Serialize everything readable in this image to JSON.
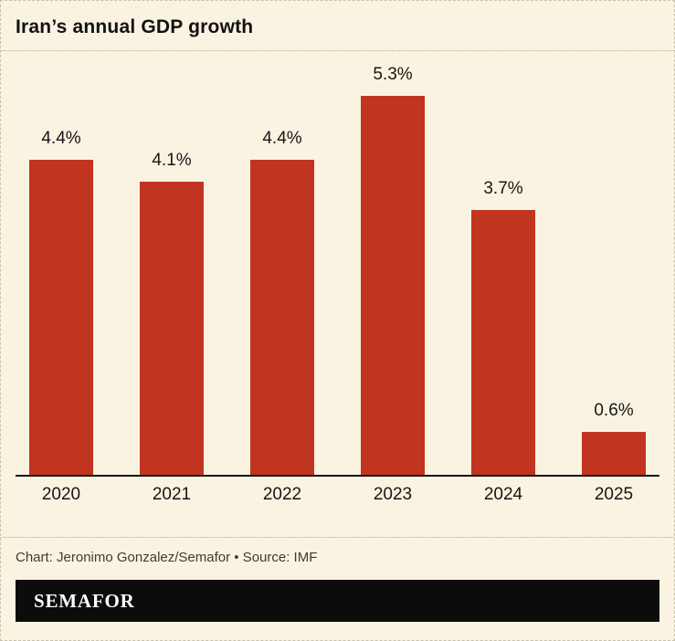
{
  "page": {
    "title": "Iran’s annual GDP growth"
  },
  "caption": {
    "text": "Chart: Jeronimo Gonzalez/Semafor • Source: IMF"
  },
  "footer": {
    "brand": "SEMAFOR"
  },
  "colors": {
    "background": "#faf3e2",
    "bar": "#c1341f",
    "axis": "#161616",
    "footer_bg": "#0c0c0c",
    "footer_text": "#ffffff"
  },
  "chart_data": {
    "type": "bar",
    "title": "Iran’s annual GDP growth",
    "categories": [
      "2020",
      "2021",
      "2022",
      "2023",
      "2024",
      "2025"
    ],
    "values": [
      4.4,
      4.1,
      4.4,
      5.3,
      3.7,
      0.6
    ],
    "value_labels": [
      "4.4%",
      "4.1%",
      "4.4%",
      "5.3%",
      "3.7%",
      "0.6%"
    ],
    "xlabel": "",
    "ylabel": "",
    "ylim": [
      0,
      5.3
    ],
    "unit": "%",
    "grid": false,
    "legend": false
  }
}
